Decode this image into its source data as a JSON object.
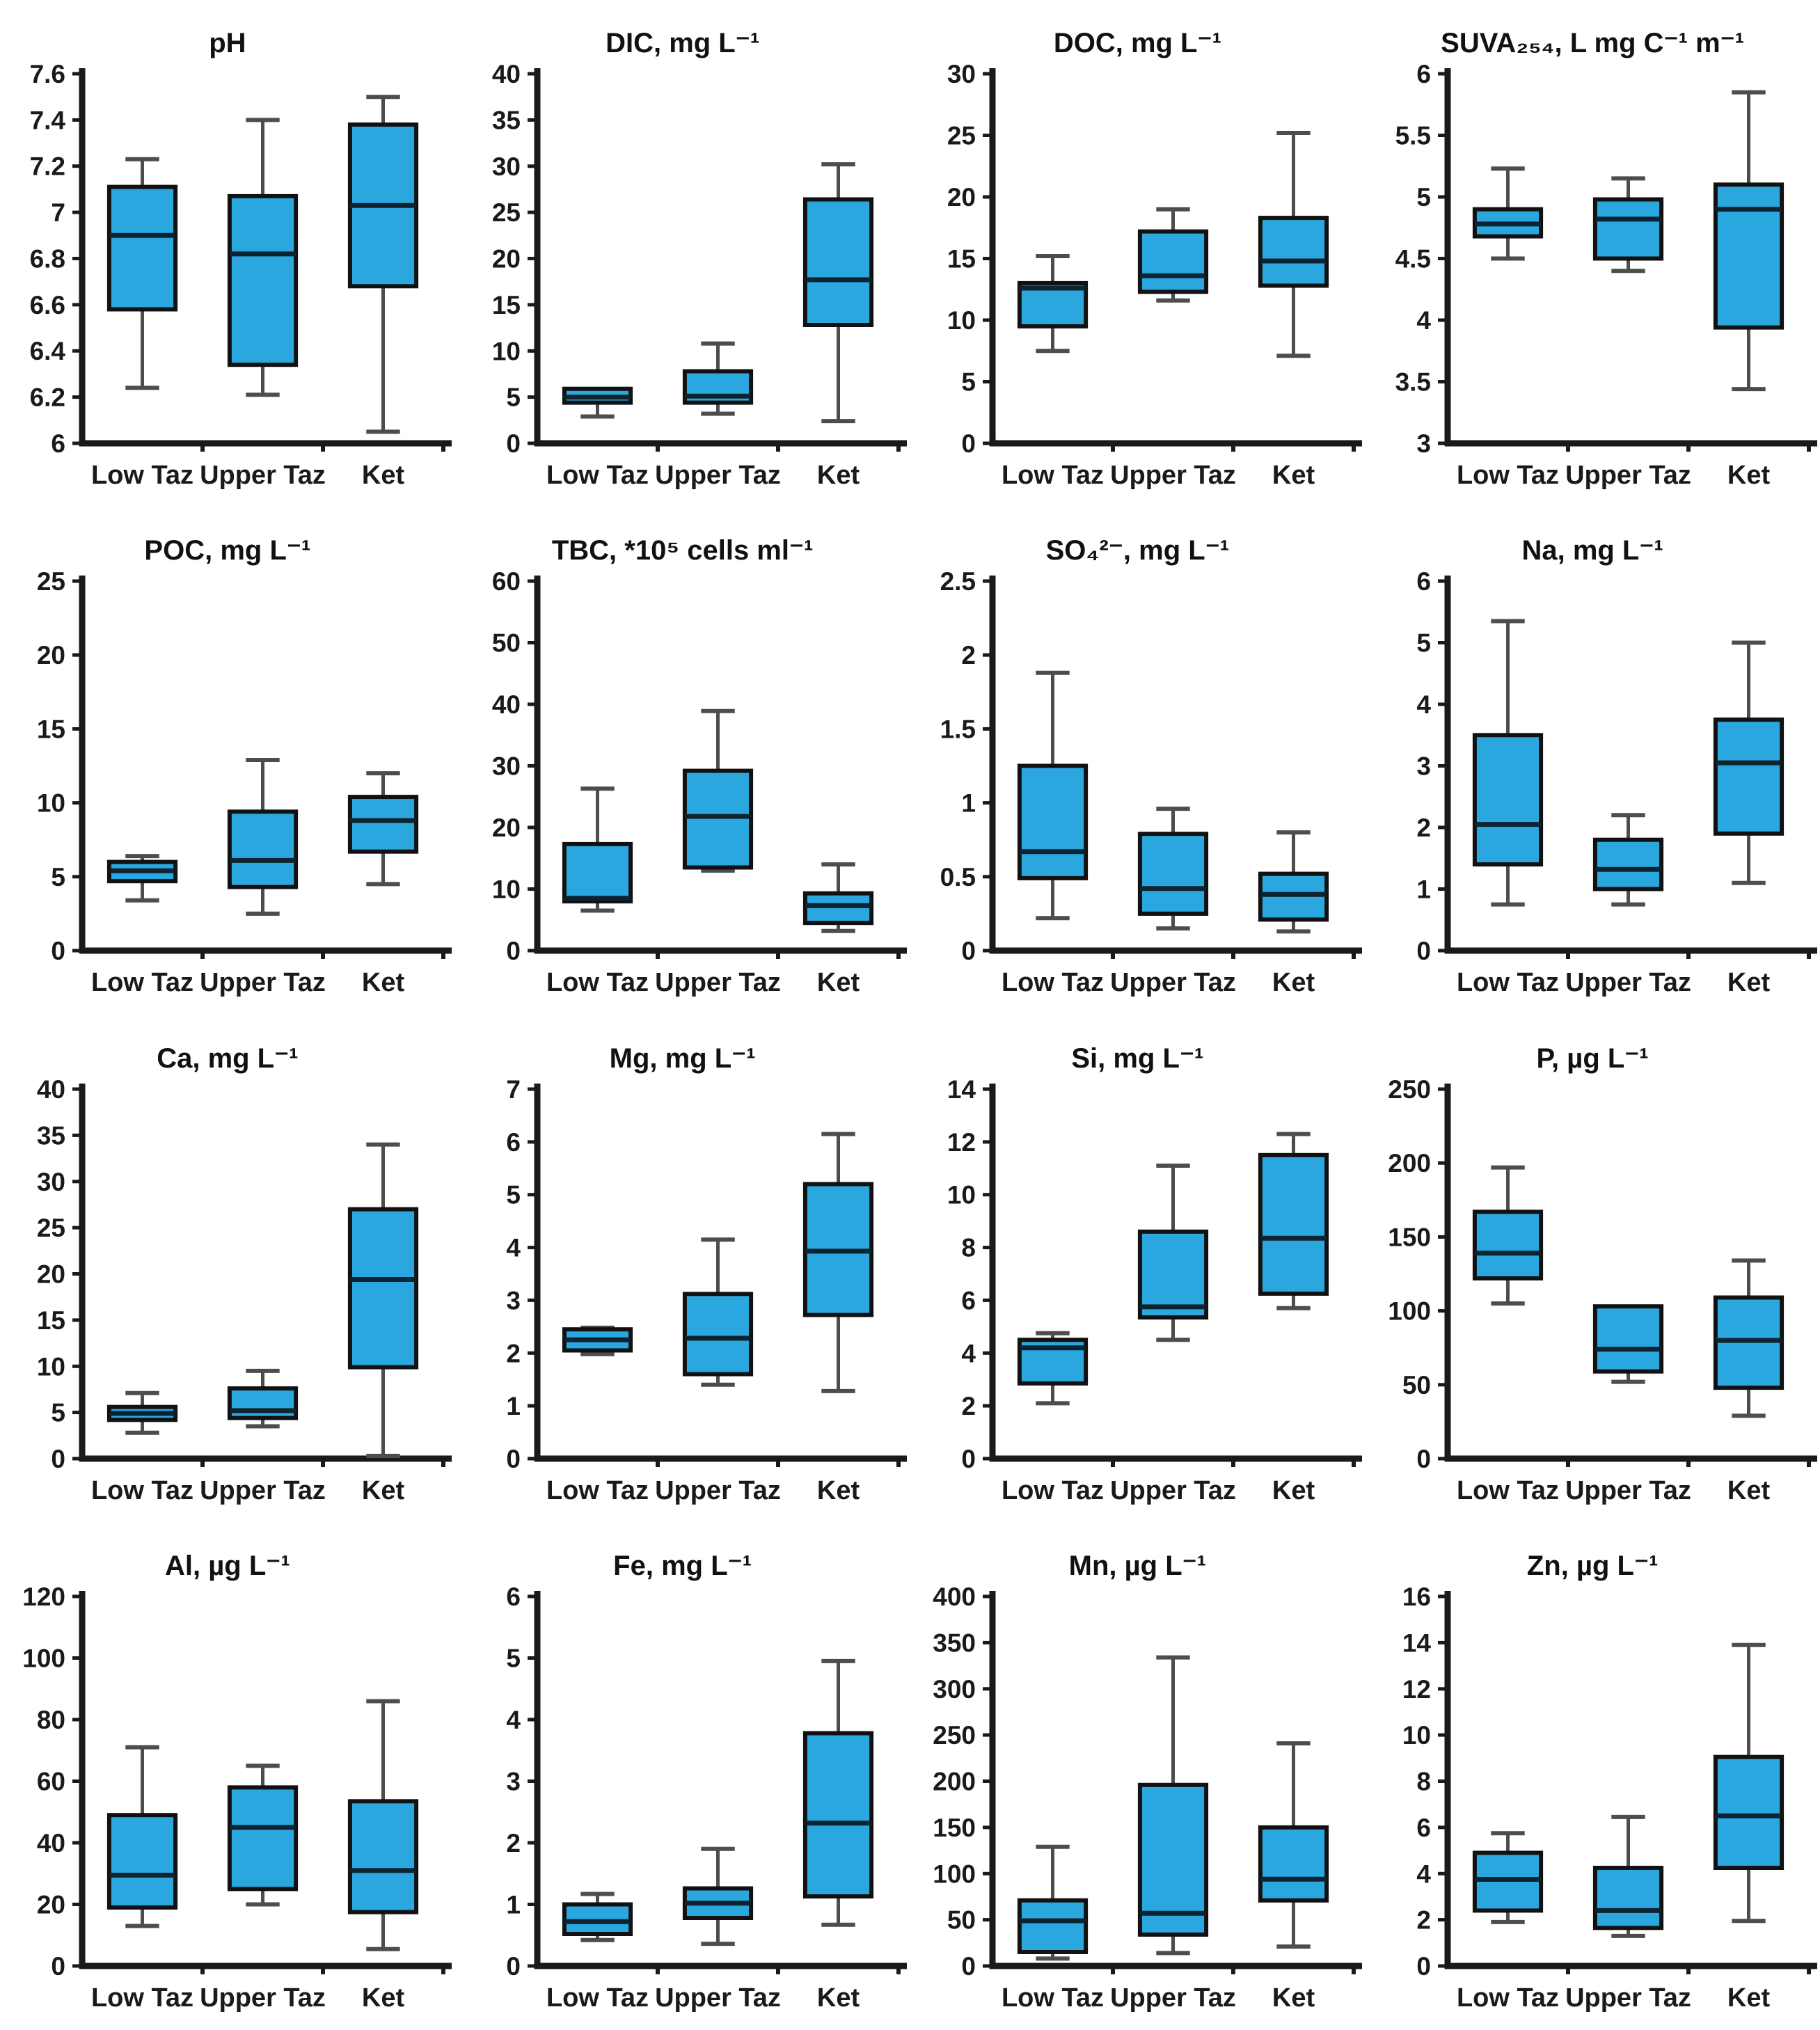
{
  "figure": {
    "background": "#ffffff",
    "box_fill": "#2BA7DF",
    "box_stroke": "#111111",
    "median_color": "#0d2330",
    "whisker_color": "#4d4d4d",
    "axis_color": "#1a1a1a",
    "categories": [
      "Low Taz",
      "Upper Taz",
      "Ket"
    ],
    "layout": "4x4 grid of box plots, y-axis and bottom axis only, no gridlines, no legend"
  },
  "chart_data": [
    {
      "type": "box",
      "title": "pH",
      "ylim": [
        6,
        7.6
      ],
      "ytick_step": 0.2,
      "categories": [
        "Low Taz",
        "Upper Taz",
        "Ket"
      ],
      "series": [
        {
          "site": "Low Taz",
          "low": 6.24,
          "q1": 6.58,
          "median": 6.9,
          "q3": 7.11,
          "high": 7.23
        },
        {
          "site": "Upper Taz",
          "low": 6.21,
          "q1": 6.34,
          "median": 6.82,
          "q3": 7.07,
          "high": 7.4
        },
        {
          "site": "Ket",
          "low": 6.05,
          "q1": 6.68,
          "median": 7.03,
          "q3": 7.38,
          "high": 7.5
        }
      ]
    },
    {
      "type": "box",
      "title": "DIC, mg L⁻¹",
      "ylim": [
        0,
        40
      ],
      "ytick_step": 5,
      "categories": [
        "Low Taz",
        "Upper Taz",
        "Ket"
      ],
      "series": [
        {
          "site": "Low Taz",
          "low": 2.9,
          "q1": 4.4,
          "median": 5.0,
          "q3": 5.9,
          "high": 5.9
        },
        {
          "site": "Upper Taz",
          "low": 3.2,
          "q1": 4.4,
          "median": 5.1,
          "q3": 7.8,
          "high": 10.8
        },
        {
          "site": "Ket",
          "low": 2.4,
          "q1": 12.8,
          "median": 17.7,
          "q3": 26.4,
          "high": 30.2
        }
      ]
    },
    {
      "type": "box",
      "title": "DOC, mg L⁻¹",
      "ylim": [
        0,
        30
      ],
      "ytick_step": 5,
      "categories": [
        "Low Taz",
        "Upper Taz",
        "Ket"
      ],
      "series": [
        {
          "site": "Low Taz",
          "low": 7.5,
          "q1": 9.5,
          "median": 12.6,
          "q3": 13.0,
          "high": 15.2
        },
        {
          "site": "Upper Taz",
          "low": 11.6,
          "q1": 12.3,
          "median": 13.6,
          "q3": 17.2,
          "high": 19.0
        },
        {
          "site": "Ket",
          "low": 7.1,
          "q1": 12.8,
          "median": 14.8,
          "q3": 18.3,
          "high": 25.2
        }
      ]
    },
    {
      "type": "box",
      "title": "SUVA₂₅₄, L mg C⁻¹ m⁻¹",
      "ylim": [
        3,
        6
      ],
      "ytick_step": 0.5,
      "categories": [
        "Low Taz",
        "Upper Taz",
        "Ket"
      ],
      "series": [
        {
          "site": "Low Taz",
          "low": 4.5,
          "q1": 4.68,
          "median": 4.78,
          "q3": 4.9,
          "high": 5.23
        },
        {
          "site": "Upper Taz",
          "low": 4.4,
          "q1": 4.5,
          "median": 4.82,
          "q3": 4.98,
          "high": 5.15
        },
        {
          "site": "Ket",
          "low": 3.44,
          "q1": 3.94,
          "median": 4.9,
          "q3": 5.1,
          "high": 5.85
        }
      ]
    },
    {
      "type": "box",
      "title": "POC, mg L⁻¹",
      "ylim": [
        0,
        25
      ],
      "ytick_step": 5,
      "categories": [
        "Low Taz",
        "Upper Taz",
        "Ket"
      ],
      "series": [
        {
          "site": "Low Taz",
          "low": 3.4,
          "q1": 4.7,
          "median": 5.4,
          "q3": 6.0,
          "high": 6.4
        },
        {
          "site": "Upper Taz",
          "low": 2.5,
          "q1": 4.3,
          "median": 6.1,
          "q3": 9.4,
          "high": 12.9
        },
        {
          "site": "Ket",
          "low": 4.5,
          "q1": 6.7,
          "median": 8.8,
          "q3": 10.4,
          "high": 12.0
        }
      ]
    },
    {
      "type": "box",
      "title": "TBC, *10⁵ cells ml⁻¹",
      "ylim": [
        0,
        60
      ],
      "ytick_step": 10,
      "categories": [
        "Low Taz",
        "Upper Taz",
        "Ket"
      ],
      "series": [
        {
          "site": "Low Taz",
          "low": 6.5,
          "q1": 8.0,
          "median": 8.5,
          "q3": 17.3,
          "high": 26.3
        },
        {
          "site": "Upper Taz",
          "low": 13.0,
          "q1": 13.5,
          "median": 21.8,
          "q3": 29.2,
          "high": 38.9
        },
        {
          "site": "Ket",
          "low": 3.2,
          "q1": 4.5,
          "median": 7.3,
          "q3": 9.3,
          "high": 14.0
        }
      ]
    },
    {
      "type": "box",
      "title": "SO₄²⁻, mg L⁻¹",
      "ylim": [
        0,
        2.5
      ],
      "ytick_step": 0.5,
      "categories": [
        "Low Taz",
        "Upper Taz",
        "Ket"
      ],
      "series": [
        {
          "site": "Low Taz",
          "low": 0.22,
          "q1": 0.49,
          "median": 0.67,
          "q3": 1.25,
          "high": 1.88
        },
        {
          "site": "Upper Taz",
          "low": 0.15,
          "q1": 0.25,
          "median": 0.42,
          "q3": 0.79,
          "high": 0.96
        },
        {
          "site": "Ket",
          "low": 0.13,
          "q1": 0.21,
          "median": 0.38,
          "q3": 0.52,
          "high": 0.8
        }
      ]
    },
    {
      "type": "box",
      "title": "Na, mg L⁻¹",
      "ylim": [
        0,
        6
      ],
      "ytick_step": 1,
      "categories": [
        "Low Taz",
        "Upper Taz",
        "Ket"
      ],
      "series": [
        {
          "site": "Low Taz",
          "low": 0.75,
          "q1": 1.4,
          "median": 2.05,
          "q3": 3.5,
          "high": 5.35
        },
        {
          "site": "Upper Taz",
          "low": 0.75,
          "q1": 1.0,
          "median": 1.32,
          "q3": 1.8,
          "high": 2.2
        },
        {
          "site": "Ket",
          "low": 1.1,
          "q1": 1.9,
          "median": 3.05,
          "q3": 3.75,
          "high": 5.0
        }
      ]
    },
    {
      "type": "box",
      "title": "Ca, mg L⁻¹",
      "ylim": [
        0,
        40
      ],
      "ytick_step": 5,
      "categories": [
        "Low Taz",
        "Upper Taz",
        "Ket"
      ],
      "series": [
        {
          "site": "Low Taz",
          "low": 2.8,
          "q1": 4.2,
          "median": 4.9,
          "q3": 5.6,
          "high": 7.1
        },
        {
          "site": "Upper Taz",
          "low": 3.5,
          "q1": 4.4,
          "median": 5.2,
          "q3": 7.6,
          "high": 9.5
        },
        {
          "site": "Ket",
          "low": 0.3,
          "q1": 9.9,
          "median": 19.4,
          "q3": 27.0,
          "high": 34.0
        }
      ]
    },
    {
      "type": "box",
      "title": "Mg, mg L⁻¹",
      "ylim": [
        0,
        7
      ],
      "ytick_step": 1,
      "categories": [
        "Low Taz",
        "Upper Taz",
        "Ket"
      ],
      "series": [
        {
          "site": "Low Taz",
          "low": 1.98,
          "q1": 2.05,
          "median": 2.25,
          "q3": 2.45,
          "high": 2.48
        },
        {
          "site": "Upper Taz",
          "low": 1.4,
          "q1": 1.6,
          "median": 2.28,
          "q3": 3.12,
          "high": 4.15
        },
        {
          "site": "Ket",
          "low": 1.28,
          "q1": 2.72,
          "median": 3.93,
          "q3": 5.2,
          "high": 6.15
        }
      ]
    },
    {
      "type": "box",
      "title": "Si, mg L⁻¹",
      "ylim": [
        0,
        14
      ],
      "ytick_step": 2,
      "categories": [
        "Low Taz",
        "Upper Taz",
        "Ket"
      ],
      "series": [
        {
          "site": "Low Taz",
          "low": 2.1,
          "q1": 2.85,
          "median": 4.2,
          "q3": 4.5,
          "high": 4.75
        },
        {
          "site": "Upper Taz",
          "low": 4.5,
          "q1": 5.35,
          "median": 5.75,
          "q3": 8.6,
          "high": 11.1
        },
        {
          "site": "Ket",
          "low": 5.7,
          "q1": 6.25,
          "median": 8.35,
          "q3": 11.5,
          "high": 12.3
        }
      ]
    },
    {
      "type": "box",
      "title": "P, µg L⁻¹",
      "ylim": [
        0,
        250
      ],
      "ytick_step": 50,
      "categories": [
        "Low Taz",
        "Upper Taz",
        "Ket"
      ],
      "series": [
        {
          "site": "Low Taz",
          "low": 105,
          "q1": 122,
          "median": 139,
          "q3": 167,
          "high": 197
        },
        {
          "site": "Upper Taz",
          "low": 52,
          "q1": 59,
          "median": 74,
          "q3": 103,
          "high": 103
        },
        {
          "site": "Ket",
          "low": 29,
          "q1": 48,
          "median": 80,
          "q3": 109,
          "high": 134
        }
      ]
    },
    {
      "type": "box",
      "title": "Al, µg L⁻¹",
      "ylim": [
        0,
        120
      ],
      "ytick_step": 20,
      "categories": [
        "Low Taz",
        "Upper Taz",
        "Ket"
      ],
      "series": [
        {
          "site": "Low Taz",
          "low": 13.0,
          "q1": 19.0,
          "median": 29.5,
          "q3": 49.0,
          "high": 71.0
        },
        {
          "site": "Upper Taz",
          "low": 20.0,
          "q1": 25.0,
          "median": 45.0,
          "q3": 58.0,
          "high": 65.0
        },
        {
          "site": "Ket",
          "low": 5.5,
          "q1": 17.5,
          "median": 31.0,
          "q3": 53.5,
          "high": 86.0
        }
      ]
    },
    {
      "type": "box",
      "title": "Fe, mg L⁻¹",
      "ylim": [
        0,
        6
      ],
      "ytick_step": 1,
      "categories": [
        "Low Taz",
        "Upper Taz",
        "Ket"
      ],
      "series": [
        {
          "site": "Low Taz",
          "low": 0.42,
          "q1": 0.52,
          "median": 0.72,
          "q3": 1.0,
          "high": 1.17
        },
        {
          "site": "Upper Taz",
          "low": 0.36,
          "q1": 0.78,
          "median": 1.02,
          "q3": 1.26,
          "high": 1.9
        },
        {
          "site": "Ket",
          "low": 0.67,
          "q1": 1.13,
          "median": 2.32,
          "q3": 3.78,
          "high": 4.95
        }
      ]
    },
    {
      "type": "box",
      "title": "Mn, µg L⁻¹",
      "ylim": [
        0,
        400
      ],
      "ytick_step": 50,
      "categories": [
        "Low Taz",
        "Upper Taz",
        "Ket"
      ],
      "series": [
        {
          "site": "Low Taz",
          "low": 8,
          "q1": 15,
          "median": 49,
          "q3": 71,
          "high": 129
        },
        {
          "site": "Upper Taz",
          "low": 14,
          "q1": 34,
          "median": 57,
          "q3": 196,
          "high": 334
        },
        {
          "site": "Ket",
          "low": 21,
          "q1": 71,
          "median": 94,
          "q3": 150,
          "high": 241
        }
      ]
    },
    {
      "type": "box",
      "title": "Zn, µg L⁻¹",
      "ylim": [
        0,
        16
      ],
      "ytick_step": 2,
      "categories": [
        "Low Taz",
        "Upper Taz",
        "Ket"
      ],
      "series": [
        {
          "site": "Low Taz",
          "low": 1.9,
          "q1": 2.4,
          "median": 3.75,
          "q3": 4.9,
          "high": 5.75
        },
        {
          "site": "Upper Taz",
          "low": 1.3,
          "q1": 1.65,
          "median": 2.4,
          "q3": 4.25,
          "high": 6.45
        },
        {
          "site": "Ket",
          "low": 1.95,
          "q1": 4.25,
          "median": 6.5,
          "q3": 9.05,
          "high": 13.9
        }
      ]
    }
  ]
}
